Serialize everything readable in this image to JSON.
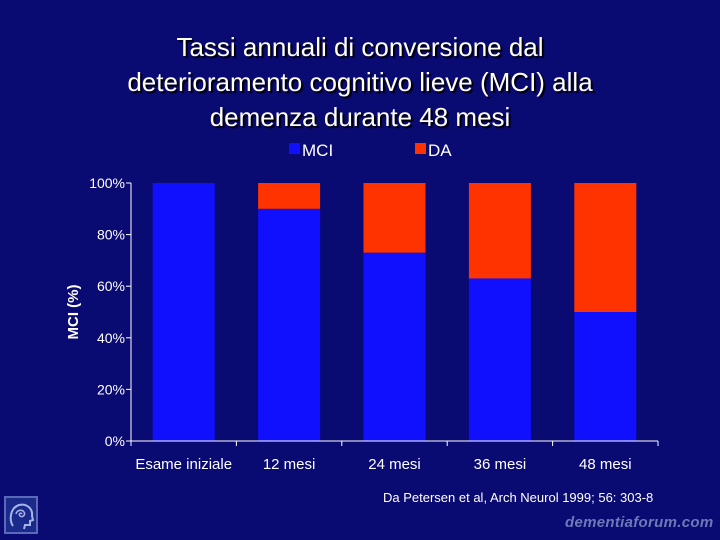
{
  "title_lines": [
    "Tassi annuali di conversione dal",
    "deterioramento cognitivo lieve (MCI) alla",
    "demenza durante 48 mesi"
  ],
  "source": "Da Petersen et al, Arch Neurol 1999; 56: 303-8",
  "brand": "dementiaforum.com",
  "colors": {
    "background": "#0a0a73",
    "mci": "#1010ff",
    "da": "#ff3300"
  },
  "chart_data": {
    "type": "bar",
    "stacked": true,
    "categories": [
      "Esame iniziale",
      "12 mesi",
      "24 mesi",
      "36 mesi",
      "48 mesi"
    ],
    "series": [
      {
        "name": "MCI",
        "values": [
          100,
          90,
          73,
          63,
          50
        ]
      },
      {
        "name": "DA",
        "values": [
          0,
          10,
          27,
          37,
          50
        ]
      }
    ],
    "ylabel": "MCI (%)",
    "xlabel": "",
    "ylim": [
      0,
      100
    ],
    "yticks": [
      "0%",
      "20%",
      "40%",
      "60%",
      "80%",
      "100%"
    ],
    "legend_position": "top"
  }
}
